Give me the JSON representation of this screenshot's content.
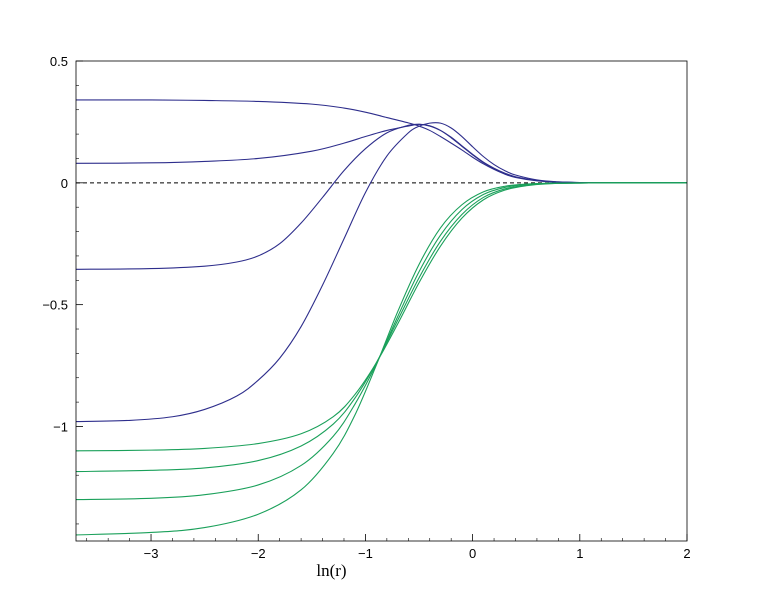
{
  "chart_data": {
    "type": "line",
    "title": "",
    "xlabel": "ln(r)",
    "ylabel": "",
    "xlim": [
      -3.7,
      2
    ],
    "ylim": [
      -1.47,
      0.5
    ],
    "x_ticks": [
      {
        "value": -3,
        "label": "−3"
      },
      {
        "value": -2,
        "label": "−2"
      },
      {
        "value": -1,
        "label": "−1"
      },
      {
        "value": 0,
        "label": "0"
      },
      {
        "value": 1,
        "label": "1"
      },
      {
        "value": 2,
        "label": "2"
      }
    ],
    "y_ticks": [
      {
        "value": 0.5,
        "label": "0.5"
      },
      {
        "value": 0,
        "label": "0"
      },
      {
        "value": -0.5,
        "label": "−0.5"
      },
      {
        "value": -1,
        "label": "−1"
      }
    ],
    "grid": false,
    "legend": "none",
    "reference_line": {
      "y": 0,
      "style": "dashed",
      "color": "#000000"
    },
    "colors": {
      "blue": "#2e2e8c",
      "green": "#1aa05a"
    },
    "series": [
      {
        "color": "#2e2e8c",
        "points": [
          [
            -3.7,
            0.34
          ],
          [
            -3.0,
            0.34
          ],
          [
            -2.5,
            0.338
          ],
          [
            -2.0,
            0.334
          ],
          [
            -1.5,
            0.323
          ],
          [
            -1.2,
            0.307
          ],
          [
            -1.0,
            0.29
          ],
          [
            -0.8,
            0.268
          ],
          [
            -0.6,
            0.246
          ],
          [
            -0.5,
            0.233
          ],
          [
            -0.4,
            0.215
          ],
          [
            -0.3,
            0.19
          ],
          [
            -0.2,
            0.163
          ],
          [
            -0.1,
            0.135
          ],
          [
            0.0,
            0.105
          ],
          [
            0.1,
            0.078
          ],
          [
            0.2,
            0.055
          ],
          [
            0.3,
            0.036
          ],
          [
            0.4,
            0.022
          ],
          [
            0.6,
            0.008
          ],
          [
            0.8,
            0.003
          ],
          [
            1.0,
            0.001
          ],
          [
            1.3,
            0.0
          ],
          [
            2.0,
            0.0
          ]
        ]
      },
      {
        "color": "#2e2e8c",
        "points": [
          [
            -3.7,
            0.08
          ],
          [
            -3.0,
            0.082
          ],
          [
            -2.5,
            0.088
          ],
          [
            -2.0,
            0.1
          ],
          [
            -1.5,
            0.13
          ],
          [
            -1.2,
            0.163
          ],
          [
            -1.0,
            0.19
          ],
          [
            -0.8,
            0.215
          ],
          [
            -0.6,
            0.233
          ],
          [
            -0.5,
            0.24
          ],
          [
            -0.4,
            0.234
          ],
          [
            -0.3,
            0.215
          ],
          [
            -0.2,
            0.185
          ],
          [
            -0.1,
            0.15
          ],
          [
            0.0,
            0.115
          ],
          [
            0.1,
            0.083
          ],
          [
            0.2,
            0.058
          ],
          [
            0.3,
            0.038
          ],
          [
            0.4,
            0.024
          ],
          [
            0.6,
            0.009
          ],
          [
            0.8,
            0.003
          ],
          [
            1.0,
            0.001
          ],
          [
            1.3,
            0.0
          ],
          [
            2.0,
            0.0
          ]
        ]
      },
      {
        "color": "#2e2e8c",
        "points": [
          [
            -3.7,
            -0.355
          ],
          [
            -3.0,
            -0.352
          ],
          [
            -2.5,
            -0.342
          ],
          [
            -2.2,
            -0.325
          ],
          [
            -2.0,
            -0.3
          ],
          [
            -1.8,
            -0.25
          ],
          [
            -1.6,
            -0.165
          ],
          [
            -1.4,
            -0.06
          ],
          [
            -1.2,
            0.05
          ],
          [
            -1.0,
            0.14
          ],
          [
            -0.8,
            0.205
          ],
          [
            -0.6,
            0.236
          ],
          [
            -0.5,
            0.24
          ],
          [
            -0.4,
            0.233
          ],
          [
            -0.3,
            0.215
          ],
          [
            -0.2,
            0.187
          ],
          [
            -0.1,
            0.152
          ],
          [
            0.0,
            0.117
          ],
          [
            0.1,
            0.085
          ],
          [
            0.2,
            0.06
          ],
          [
            0.3,
            0.04
          ],
          [
            0.4,
            0.025
          ],
          [
            0.6,
            0.01
          ],
          [
            0.8,
            0.003
          ],
          [
            1.0,
            0.001
          ],
          [
            1.3,
            0.0
          ],
          [
            2.0,
            0.0
          ]
        ]
      },
      {
        "color": "#2e2e8c",
        "points": [
          [
            -3.7,
            -0.98
          ],
          [
            -3.2,
            -0.975
          ],
          [
            -2.8,
            -0.96
          ],
          [
            -2.5,
            -0.93
          ],
          [
            -2.2,
            -0.875
          ],
          [
            -2.0,
            -0.81
          ],
          [
            -1.8,
            -0.72
          ],
          [
            -1.6,
            -0.59
          ],
          [
            -1.4,
            -0.42
          ],
          [
            -1.2,
            -0.23
          ],
          [
            -1.0,
            -0.04
          ],
          [
            -0.8,
            0.11
          ],
          [
            -0.6,
            0.205
          ],
          [
            -0.5,
            0.232
          ],
          [
            -0.4,
            0.245
          ],
          [
            -0.3,
            0.245
          ],
          [
            -0.2,
            0.225
          ],
          [
            -0.1,
            0.19
          ],
          [
            0.0,
            0.148
          ],
          [
            0.1,
            0.108
          ],
          [
            0.2,
            0.075
          ],
          [
            0.3,
            0.05
          ],
          [
            0.4,
            0.032
          ],
          [
            0.6,
            0.012
          ],
          [
            0.8,
            0.004
          ],
          [
            1.0,
            0.001
          ],
          [
            1.3,
            0.0
          ],
          [
            2.0,
            0.0
          ]
        ]
      },
      {
        "color": "#1aa05a",
        "points": [
          [
            -3.7,
            -1.1
          ],
          [
            -3.0,
            -1.097
          ],
          [
            -2.5,
            -1.09
          ],
          [
            -2.0,
            -1.07
          ],
          [
            -1.6,
            -1.03
          ],
          [
            -1.3,
            -0.96
          ],
          [
            -1.1,
            -0.87
          ],
          [
            -0.9,
            -0.74
          ],
          [
            -0.7,
            -0.58
          ],
          [
            -0.5,
            -0.41
          ],
          [
            -0.3,
            -0.26
          ],
          [
            -0.1,
            -0.145
          ],
          [
            0.1,
            -0.07
          ],
          [
            0.3,
            -0.03
          ],
          [
            0.5,
            -0.012
          ],
          [
            0.7,
            -0.004
          ],
          [
            1.0,
            -0.001
          ],
          [
            1.3,
            0.0
          ],
          [
            2.0,
            0.0
          ]
        ]
      },
      {
        "color": "#1aa05a",
        "points": [
          [
            -3.7,
            -1.185
          ],
          [
            -3.0,
            -1.18
          ],
          [
            -2.5,
            -1.17
          ],
          [
            -2.0,
            -1.14
          ],
          [
            -1.6,
            -1.08
          ],
          [
            -1.3,
            -0.99
          ],
          [
            -1.1,
            -0.885
          ],
          [
            -0.9,
            -0.74
          ],
          [
            -0.7,
            -0.565
          ],
          [
            -0.5,
            -0.39
          ],
          [
            -0.3,
            -0.24
          ],
          [
            -0.1,
            -0.13
          ],
          [
            0.1,
            -0.06
          ],
          [
            0.3,
            -0.025
          ],
          [
            0.5,
            -0.01
          ],
          [
            0.7,
            -0.003
          ],
          [
            1.0,
            -0.001
          ],
          [
            1.3,
            0.0
          ],
          [
            2.0,
            0.0
          ]
        ]
      },
      {
        "color": "#1aa05a",
        "points": [
          [
            -3.7,
            -1.3
          ],
          [
            -3.0,
            -1.295
          ],
          [
            -2.5,
            -1.28
          ],
          [
            -2.0,
            -1.24
          ],
          [
            -1.6,
            -1.16
          ],
          [
            -1.3,
            -1.04
          ],
          [
            -1.1,
            -0.91
          ],
          [
            -0.9,
            -0.745
          ],
          [
            -0.7,
            -0.55
          ],
          [
            -0.5,
            -0.365
          ],
          [
            -0.3,
            -0.215
          ],
          [
            -0.1,
            -0.11
          ],
          [
            0.1,
            -0.048
          ],
          [
            0.3,
            -0.019
          ],
          [
            0.5,
            -0.007
          ],
          [
            0.7,
            -0.002
          ],
          [
            1.0,
            -0.001
          ],
          [
            1.3,
            0.0
          ],
          [
            2.0,
            0.0
          ]
        ]
      },
      {
        "color": "#1aa05a",
        "points": [
          [
            -3.7,
            -1.445
          ],
          [
            -3.0,
            -1.435
          ],
          [
            -2.5,
            -1.415
          ],
          [
            -2.0,
            -1.36
          ],
          [
            -1.6,
            -1.26
          ],
          [
            -1.3,
            -1.11
          ],
          [
            -1.1,
            -0.955
          ],
          [
            -0.9,
            -0.75
          ],
          [
            -0.7,
            -0.53
          ],
          [
            -0.5,
            -0.335
          ],
          [
            -0.3,
            -0.185
          ],
          [
            -0.1,
            -0.09
          ],
          [
            0.1,
            -0.037
          ],
          [
            0.3,
            -0.014
          ],
          [
            0.5,
            -0.005
          ],
          [
            0.7,
            -0.002
          ],
          [
            1.0,
            0.0
          ],
          [
            1.3,
            0.0
          ],
          [
            2.0,
            0.0
          ]
        ]
      }
    ]
  }
}
